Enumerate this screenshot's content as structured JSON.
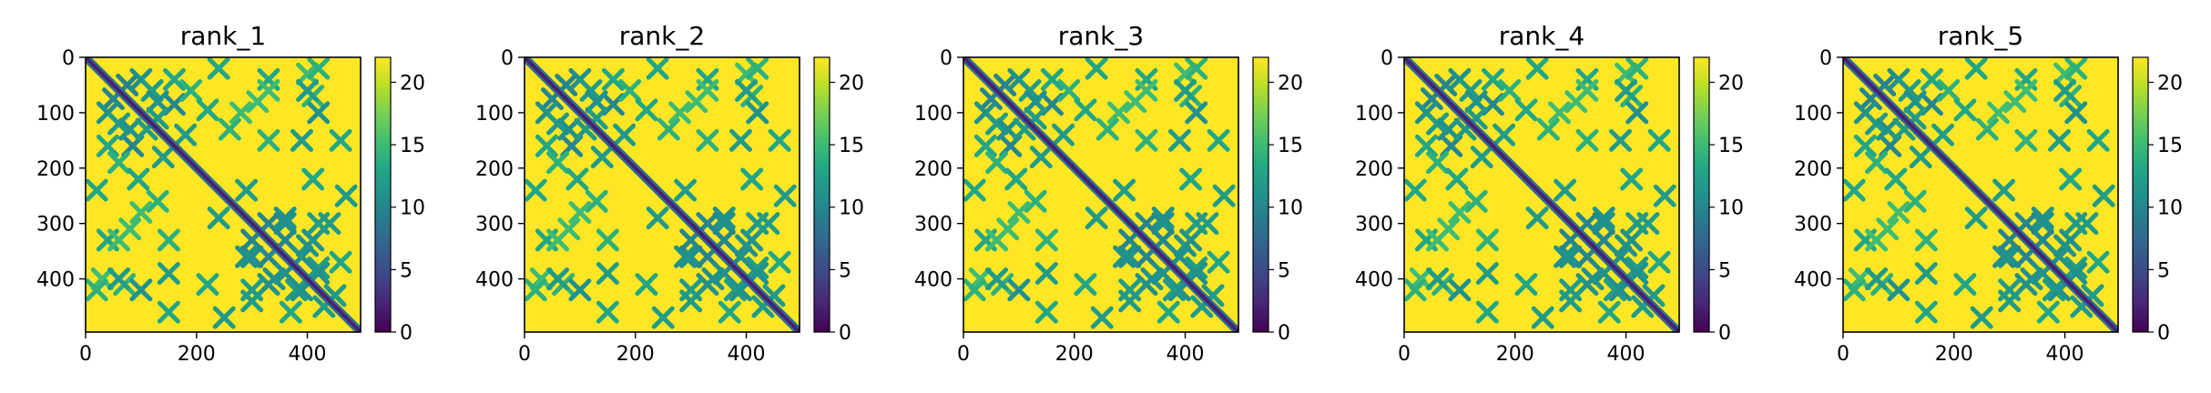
{
  "chart_data": [
    {
      "type": "heatmap",
      "title": "rank_1",
      "xlim": [
        0,
        496
      ],
      "ylim": [
        496,
        0
      ],
      "xticks": [
        0,
        200,
        400
      ],
      "yticks": [
        0,
        100,
        200,
        300,
        400
      ],
      "colorbar": {
        "min": 0,
        "max": 22,
        "ticks": [
          0,
          5,
          10,
          15,
          20
        ],
        "colormap": "viridis"
      },
      "diagonal": {
        "value": 2
      },
      "contact_features": [
        {
          "x": 50,
          "y": 75,
          "v": 10
        },
        {
          "x": 100,
          "y": 40,
          "v": 11
        },
        {
          "x": 120,
          "y": 60,
          "v": 12
        },
        {
          "x": 160,
          "y": 85,
          "v": 10
        },
        {
          "x": 80,
          "y": 130,
          "v": 11
        },
        {
          "x": 130,
          "y": 110,
          "v": 12
        },
        {
          "x": 40,
          "y": 160,
          "v": 13
        },
        {
          "x": 60,
          "y": 190,
          "v": 14
        },
        {
          "x": 180,
          "y": 140,
          "v": 12
        },
        {
          "x": 220,
          "y": 95,
          "v": 13
        },
        {
          "x": 260,
          "y": 130,
          "v": 14
        },
        {
          "x": 310,
          "y": 80,
          "v": 15
        },
        {
          "x": 330,
          "y": 40,
          "v": 13
        },
        {
          "x": 400,
          "y": 30,
          "v": 15
        },
        {
          "x": 410,
          "y": 70,
          "v": 14
        },
        {
          "x": 20,
          "y": 240,
          "v": 13
        },
        {
          "x": 100,
          "y": 280,
          "v": 15
        },
        {
          "x": 150,
          "y": 330,
          "v": 14
        },
        {
          "x": 60,
          "y": 330,
          "v": 15
        },
        {
          "x": 240,
          "y": 290,
          "v": 12
        },
        {
          "x": 300,
          "y": 360,
          "v": 11
        },
        {
          "x": 330,
          "y": 300,
          "v": 10
        },
        {
          "x": 360,
          "y": 290,
          "v": 11
        },
        {
          "x": 360,
          "y": 330,
          "v": 10
        },
        {
          "x": 410,
          "y": 330,
          "v": 11
        },
        {
          "x": 440,
          "y": 300,
          "v": 12
        },
        {
          "x": 390,
          "y": 360,
          "v": 11
        },
        {
          "x": 300,
          "y": 420,
          "v": 12
        },
        {
          "x": 340,
          "y": 400,
          "v": 11
        },
        {
          "x": 380,
          "y": 420,
          "v": 12
        },
        {
          "x": 420,
          "y": 390,
          "v": 11
        },
        {
          "x": 450,
          "y": 430,
          "v": 12
        },
        {
          "x": 460,
          "y": 370,
          "v": 13
        },
        {
          "x": 60,
          "y": 400,
          "v": 12
        },
        {
          "x": 100,
          "y": 420,
          "v": 11
        },
        {
          "x": 150,
          "y": 390,
          "v": 12
        },
        {
          "x": 220,
          "y": 410,
          "v": 13
        },
        {
          "x": 150,
          "y": 460,
          "v": 13
        },
        {
          "x": 250,
          "y": 470,
          "v": 12
        },
        {
          "x": 20,
          "y": 420,
          "v": 14
        }
      ]
    },
    {
      "type": "heatmap",
      "title": "rank_2",
      "xlim": [
        0,
        496
      ],
      "ylim": [
        496,
        0
      ],
      "xticks": [
        0,
        200,
        400
      ],
      "yticks": [
        0,
        100,
        200,
        300,
        400
      ],
      "colorbar": {
        "min": 0,
        "max": 22,
        "ticks": [
          0,
          5,
          10,
          15,
          20
        ],
        "colormap": "viridis"
      },
      "diagonal": {
        "value": 2
      },
      "contact_features": [
        {
          "x": 50,
          "y": 75,
          "v": 10
        },
        {
          "x": 100,
          "y": 40,
          "v": 11
        },
        {
          "x": 120,
          "y": 60,
          "v": 12
        },
        {
          "x": 160,
          "y": 85,
          "v": 10
        },
        {
          "x": 80,
          "y": 130,
          "v": 11
        },
        {
          "x": 130,
          "y": 110,
          "v": 12
        },
        {
          "x": 40,
          "y": 160,
          "v": 13
        },
        {
          "x": 60,
          "y": 190,
          "v": 14
        },
        {
          "x": 180,
          "y": 140,
          "v": 12
        },
        {
          "x": 220,
          "y": 95,
          "v": 13
        },
        {
          "x": 260,
          "y": 130,
          "v": 14
        },
        {
          "x": 310,
          "y": 80,
          "v": 15
        },
        {
          "x": 330,
          "y": 40,
          "v": 13
        },
        {
          "x": 400,
          "y": 30,
          "v": 15
        },
        {
          "x": 410,
          "y": 70,
          "v": 14
        },
        {
          "x": 20,
          "y": 240,
          "v": 13
        },
        {
          "x": 100,
          "y": 280,
          "v": 15
        },
        {
          "x": 150,
          "y": 330,
          "v": 14
        },
        {
          "x": 60,
          "y": 330,
          "v": 15
        },
        {
          "x": 240,
          "y": 290,
          "v": 12
        },
        {
          "x": 300,
          "y": 360,
          "v": 11
        },
        {
          "x": 330,
          "y": 300,
          "v": 10
        },
        {
          "x": 360,
          "y": 290,
          "v": 11
        },
        {
          "x": 360,
          "y": 330,
          "v": 10
        },
        {
          "x": 410,
          "y": 330,
          "v": 11
        },
        {
          "x": 440,
          "y": 300,
          "v": 12
        },
        {
          "x": 390,
          "y": 360,
          "v": 11
        },
        {
          "x": 300,
          "y": 420,
          "v": 12
        },
        {
          "x": 340,
          "y": 400,
          "v": 11
        },
        {
          "x": 380,
          "y": 420,
          "v": 12
        },
        {
          "x": 420,
          "y": 390,
          "v": 11
        },
        {
          "x": 450,
          "y": 430,
          "v": 12
        },
        {
          "x": 460,
          "y": 370,
          "v": 13
        },
        {
          "x": 60,
          "y": 400,
          "v": 12
        },
        {
          "x": 100,
          "y": 420,
          "v": 11
        },
        {
          "x": 150,
          "y": 390,
          "v": 12
        },
        {
          "x": 220,
          "y": 410,
          "v": 13
        },
        {
          "x": 150,
          "y": 460,
          "v": 13
        },
        {
          "x": 250,
          "y": 470,
          "v": 12
        },
        {
          "x": 20,
          "y": 420,
          "v": 14
        }
      ]
    },
    {
      "type": "heatmap",
      "title": "rank_3",
      "xlim": [
        0,
        496
      ],
      "ylim": [
        496,
        0
      ],
      "xticks": [
        0,
        200,
        400
      ],
      "yticks": [
        0,
        100,
        200,
        300,
        400
      ],
      "colorbar": {
        "min": 0,
        "max": 22,
        "ticks": [
          0,
          5,
          10,
          15,
          20
        ],
        "colormap": "viridis"
      },
      "diagonal": {
        "value": 2
      },
      "contact_features": [
        {
          "x": 50,
          "y": 75,
          "v": 10
        },
        {
          "x": 100,
          "y": 40,
          "v": 11
        },
        {
          "x": 120,
          "y": 60,
          "v": 12
        },
        {
          "x": 160,
          "y": 85,
          "v": 10
        },
        {
          "x": 80,
          "y": 130,
          "v": 11
        },
        {
          "x": 130,
          "y": 110,
          "v": 12
        },
        {
          "x": 40,
          "y": 160,
          "v": 13
        },
        {
          "x": 60,
          "y": 190,
          "v": 14
        },
        {
          "x": 180,
          "y": 140,
          "v": 12
        },
        {
          "x": 220,
          "y": 95,
          "v": 13
        },
        {
          "x": 260,
          "y": 130,
          "v": 14
        },
        {
          "x": 310,
          "y": 80,
          "v": 15
        },
        {
          "x": 330,
          "y": 40,
          "v": 13
        },
        {
          "x": 400,
          "y": 30,
          "v": 15
        },
        {
          "x": 410,
          "y": 70,
          "v": 14
        },
        {
          "x": 20,
          "y": 240,
          "v": 13
        },
        {
          "x": 100,
          "y": 280,
          "v": 15
        },
        {
          "x": 150,
          "y": 330,
          "v": 14
        },
        {
          "x": 60,
          "y": 330,
          "v": 15
        },
        {
          "x": 240,
          "y": 290,
          "v": 12
        },
        {
          "x": 300,
          "y": 360,
          "v": 11
        },
        {
          "x": 330,
          "y": 300,
          "v": 10
        },
        {
          "x": 360,
          "y": 290,
          "v": 11
        },
        {
          "x": 360,
          "y": 330,
          "v": 10
        },
        {
          "x": 410,
          "y": 330,
          "v": 11
        },
        {
          "x": 440,
          "y": 300,
          "v": 12
        },
        {
          "x": 390,
          "y": 360,
          "v": 11
        },
        {
          "x": 300,
          "y": 420,
          "v": 12
        },
        {
          "x": 340,
          "y": 400,
          "v": 11
        },
        {
          "x": 380,
          "y": 420,
          "v": 12
        },
        {
          "x": 420,
          "y": 390,
          "v": 11
        },
        {
          "x": 450,
          "y": 430,
          "v": 12
        },
        {
          "x": 460,
          "y": 370,
          "v": 13
        },
        {
          "x": 60,
          "y": 400,
          "v": 12
        },
        {
          "x": 100,
          "y": 420,
          "v": 11
        },
        {
          "x": 150,
          "y": 390,
          "v": 12
        },
        {
          "x": 220,
          "y": 410,
          "v": 13
        },
        {
          "x": 150,
          "y": 460,
          "v": 13
        },
        {
          "x": 250,
          "y": 470,
          "v": 12
        },
        {
          "x": 20,
          "y": 420,
          "v": 14
        }
      ]
    },
    {
      "type": "heatmap",
      "title": "rank_4",
      "xlim": [
        0,
        496
      ],
      "ylim": [
        496,
        0
      ],
      "xticks": [
        0,
        200,
        400
      ],
      "yticks": [
        0,
        100,
        200,
        300,
        400
      ],
      "colorbar": {
        "min": 0,
        "max": 22,
        "ticks": [
          0,
          5,
          10,
          15,
          20
        ],
        "colormap": "viridis"
      },
      "diagonal": {
        "value": 2
      },
      "contact_features": [
        {
          "x": 50,
          "y": 75,
          "v": 10
        },
        {
          "x": 100,
          "y": 40,
          "v": 11
        },
        {
          "x": 120,
          "y": 60,
          "v": 12
        },
        {
          "x": 160,
          "y": 85,
          "v": 10
        },
        {
          "x": 80,
          "y": 130,
          "v": 11
        },
        {
          "x": 130,
          "y": 110,
          "v": 12
        },
        {
          "x": 40,
          "y": 160,
          "v": 13
        },
        {
          "x": 60,
          "y": 190,
          "v": 14
        },
        {
          "x": 180,
          "y": 140,
          "v": 12
        },
        {
          "x": 220,
          "y": 95,
          "v": 13
        },
        {
          "x": 260,
          "y": 130,
          "v": 14
        },
        {
          "x": 310,
          "y": 80,
          "v": 15
        },
        {
          "x": 330,
          "y": 40,
          "v": 13
        },
        {
          "x": 400,
          "y": 30,
          "v": 15
        },
        {
          "x": 410,
          "y": 70,
          "v": 14
        },
        {
          "x": 20,
          "y": 240,
          "v": 13
        },
        {
          "x": 100,
          "y": 280,
          "v": 15
        },
        {
          "x": 150,
          "y": 330,
          "v": 14
        },
        {
          "x": 60,
          "y": 330,
          "v": 15
        },
        {
          "x": 240,
          "y": 290,
          "v": 12
        },
        {
          "x": 300,
          "y": 360,
          "v": 11
        },
        {
          "x": 330,
          "y": 300,
          "v": 10
        },
        {
          "x": 360,
          "y": 290,
          "v": 11
        },
        {
          "x": 360,
          "y": 330,
          "v": 10
        },
        {
          "x": 410,
          "y": 330,
          "v": 11
        },
        {
          "x": 440,
          "y": 300,
          "v": 12
        },
        {
          "x": 390,
          "y": 360,
          "v": 11
        },
        {
          "x": 300,
          "y": 420,
          "v": 12
        },
        {
          "x": 340,
          "y": 400,
          "v": 11
        },
        {
          "x": 380,
          "y": 420,
          "v": 12
        },
        {
          "x": 420,
          "y": 390,
          "v": 11
        },
        {
          "x": 450,
          "y": 430,
          "v": 12
        },
        {
          "x": 460,
          "y": 370,
          "v": 13
        },
        {
          "x": 60,
          "y": 400,
          "v": 12
        },
        {
          "x": 100,
          "y": 420,
          "v": 11
        },
        {
          "x": 150,
          "y": 390,
          "v": 12
        },
        {
          "x": 220,
          "y": 410,
          "v": 13
        },
        {
          "x": 150,
          "y": 460,
          "v": 13
        },
        {
          "x": 250,
          "y": 470,
          "v": 12
        },
        {
          "x": 20,
          "y": 420,
          "v": 14
        }
      ]
    },
    {
      "type": "heatmap",
      "title": "rank_5",
      "xlim": [
        0,
        496
      ],
      "ylim": [
        496,
        0
      ],
      "xticks": [
        0,
        200,
        400
      ],
      "yticks": [
        0,
        100,
        200,
        300,
        400
      ],
      "colorbar": {
        "min": 0,
        "max": 22,
        "ticks": [
          0,
          5,
          10,
          15,
          20
        ],
        "colormap": "viridis"
      },
      "diagonal": {
        "value": 2
      },
      "contact_features": [
        {
          "x": 50,
          "y": 75,
          "v": 10
        },
        {
          "x": 100,
          "y": 40,
          "v": 11
        },
        {
          "x": 120,
          "y": 60,
          "v": 12
        },
        {
          "x": 160,
          "y": 85,
          "v": 10
        },
        {
          "x": 80,
          "y": 130,
          "v": 11
        },
        {
          "x": 130,
          "y": 110,
          "v": 12
        },
        {
          "x": 40,
          "y": 160,
          "v": 13
        },
        {
          "x": 60,
          "y": 190,
          "v": 14
        },
        {
          "x": 180,
          "y": 140,
          "v": 12
        },
        {
          "x": 220,
          "y": 95,
          "v": 13
        },
        {
          "x": 260,
          "y": 130,
          "v": 14
        },
        {
          "x": 310,
          "y": 80,
          "v": 15
        },
        {
          "x": 330,
          "y": 40,
          "v": 13
        },
        {
          "x": 400,
          "y": 30,
          "v": 15
        },
        {
          "x": 410,
          "y": 70,
          "v": 14
        },
        {
          "x": 20,
          "y": 240,
          "v": 13
        },
        {
          "x": 100,
          "y": 280,
          "v": 15
        },
        {
          "x": 150,
          "y": 330,
          "v": 14
        },
        {
          "x": 60,
          "y": 330,
          "v": 15
        },
        {
          "x": 240,
          "y": 290,
          "v": 12
        },
        {
          "x": 300,
          "y": 360,
          "v": 11
        },
        {
          "x": 330,
          "y": 300,
          "v": 10
        },
        {
          "x": 360,
          "y": 290,
          "v": 11
        },
        {
          "x": 360,
          "y": 330,
          "v": 10
        },
        {
          "x": 410,
          "y": 330,
          "v": 11
        },
        {
          "x": 440,
          "y": 300,
          "v": 12
        },
        {
          "x": 390,
          "y": 360,
          "v": 11
        },
        {
          "x": 300,
          "y": 420,
          "v": 12
        },
        {
          "x": 340,
          "y": 400,
          "v": 11
        },
        {
          "x": 380,
          "y": 420,
          "v": 12
        },
        {
          "x": 420,
          "y": 390,
          "v": 11
        },
        {
          "x": 450,
          "y": 430,
          "v": 12
        },
        {
          "x": 460,
          "y": 370,
          "v": 13
        },
        {
          "x": 60,
          "y": 400,
          "v": 12
        },
        {
          "x": 100,
          "y": 420,
          "v": 11
        },
        {
          "x": 150,
          "y": 390,
          "v": 12
        },
        {
          "x": 220,
          "y": 410,
          "v": 13
        },
        {
          "x": 150,
          "y": 460,
          "v": 13
        },
        {
          "x": 250,
          "y": 470,
          "v": 12
        },
        {
          "x": 20,
          "y": 420,
          "v": 14
        }
      ]
    }
  ]
}
